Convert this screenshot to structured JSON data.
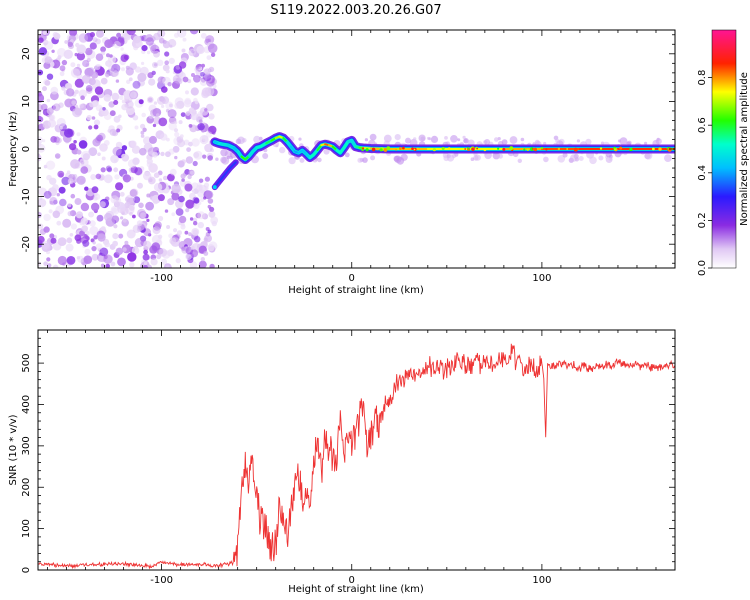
{
  "figure_title": "S119.2022.003.20.26.G07",
  "chart_data": [
    {
      "type": "heatmap",
      "xlabel": "Height of straight line (km)",
      "ylabel": "Frequency (Hz)",
      "xlim": [
        -165,
        170
      ],
      "ylim": [
        -25,
        25
      ],
      "xticks": [
        -100,
        0,
        100
      ],
      "yticks": [
        -20,
        -10,
        0,
        10,
        20
      ],
      "grid": false,
      "colorbar": {
        "label": "Normalized spectral amplitude",
        "range": [
          0,
          1
        ],
        "ticks": [
          "0.0",
          "0.2",
          "0.4",
          "0.6",
          "0.8"
        ],
        "colormap": "white-violet-purple-blue-cyan-green-yellow-red-magenta"
      },
      "ridge_trace": {
        "x": [
          -72,
          -70,
          -68,
          -65,
          -62,
          -60,
          -58,
          -56,
          -54,
          -52,
          -50,
          -48,
          -45,
          -42,
          -40,
          -38,
          -36,
          -34,
          -32,
          -30,
          -28,
          -26,
          -24,
          -22,
          -20,
          -18,
          -16,
          -14,
          -12,
          -10,
          -8,
          -6,
          -4,
          -2,
          0,
          2,
          4,
          6,
          10,
          20,
          40,
          60,
          80,
          100,
          120,
          140,
          170
        ],
        "y": [
          1.5,
          1.2,
          1.0,
          0.8,
          0.2,
          -0.5,
          -1.6,
          -2.2,
          -1.5,
          -0.5,
          0.3,
          0.5,
          1.2,
          1.8,
          2.3,
          2.6,
          2.3,
          1.5,
          0.5,
          -0.5,
          -0.8,
          -0.3,
          -1.0,
          -1.8,
          -1.2,
          -0.2,
          0.8,
          1.0,
          0.8,
          0.5,
          -0.2,
          -0.8,
          0.3,
          1.5,
          1.8,
          0.5,
          0.3,
          0.2,
          0.1,
          0.0,
          0.0,
          0.0,
          0.0,
          0.0,
          0.0,
          0.0,
          0.0
        ],
        "amplitude": [
          0.4,
          0.45,
          0.5,
          0.45,
          0.45,
          0.4,
          0.55,
          0.7,
          0.5,
          0.45,
          0.5,
          0.5,
          0.55,
          0.6,
          0.65,
          0.75,
          0.7,
          0.5,
          0.45,
          0.4,
          0.4,
          0.45,
          0.4,
          0.5,
          0.55,
          0.5,
          0.7,
          0.8,
          0.85,
          0.7,
          0.55,
          0.5,
          0.55,
          0.5,
          0.45,
          0.5,
          0.6,
          0.7,
          0.75,
          0.8,
          0.75,
          0.72,
          0.75,
          0.82,
          0.85,
          0.85,
          0.85
        ]
      },
      "lower_branch": {
        "x": [
          -72,
          -70,
          -67,
          -64,
          -61
        ],
        "y": [
          -8.0,
          -7.0,
          -5.5,
          -4.0,
          -2.8
        ]
      },
      "noise_region_x": [
        -165,
        -72
      ]
    },
    {
      "type": "line",
      "xlabel": "Height of straight line (km)",
      "ylabel": "SNR (10 * v/v)",
      "xlim": [
        -165,
        170
      ],
      "ylim": [
        0,
        580
      ],
      "xticks": [
        -100,
        0,
        100
      ],
      "yticks": [
        0,
        100,
        200,
        300,
        400,
        500
      ],
      "grid": false,
      "color": "#ee3333",
      "series": [
        {
          "x": [
            -165,
            -150,
            -140,
            -120,
            -105,
            -100,
            -90,
            -80,
            -70,
            -62,
            -60,
            -58,
            -56,
            -54,
            -52,
            -50,
            -48,
            -46,
            -44,
            -42,
            -40,
            -38,
            -36,
            -34,
            -32,
            -30,
            -28,
            -26,
            -24,
            -22,
            -20,
            -18,
            -16,
            -14,
            -12,
            -10,
            -8,
            -6,
            -4,
            -2,
            0,
            2,
            4,
            6,
            8,
            10,
            12,
            14,
            16,
            18,
            20,
            22,
            25,
            30,
            35,
            40,
            45,
            50,
            55,
            60,
            65,
            70,
            75,
            80,
            85,
            90,
            95,
            98,
            100,
            101,
            102,
            103,
            105,
            110,
            115,
            120,
            130,
            140,
            150,
            160,
            170
          ],
          "y": [
            15,
            10,
            12,
            15,
            8,
            20,
            12,
            14,
            10,
            18,
            60,
            180,
            260,
            210,
            270,
            180,
            120,
            100,
            80,
            50,
            60,
            150,
            120,
            90,
            140,
            190,
            220,
            180,
            200,
            170,
            260,
            300,
            240,
            330,
            300,
            280,
            250,
            370,
            300,
            320,
            300,
            330,
            360,
            400,
            280,
            310,
            370,
            340,
            380,
            400,
            410,
            440,
            460,
            470,
            480,
            490,
            500,
            480,
            510,
            490,
            500,
            505,
            495,
            510,
            520,
            480,
            500,
            480,
            500,
            460,
            320,
            500,
            490,
            500,
            495,
            490,
            490,
            500,
            495,
            490,
            495
          ]
        }
      ]
    }
  ]
}
